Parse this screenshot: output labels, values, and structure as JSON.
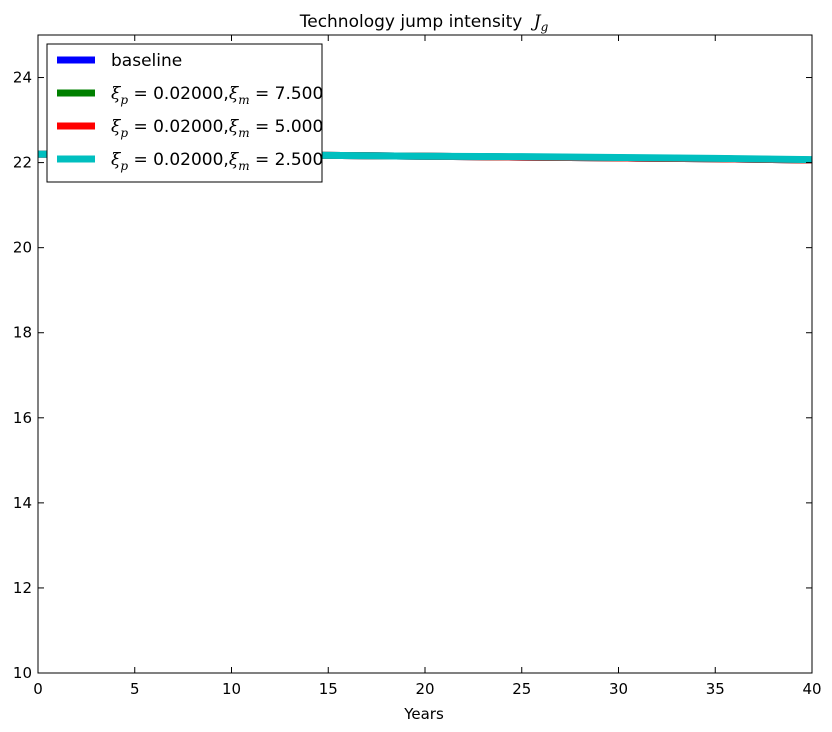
{
  "chart_data": {
    "type": "line",
    "title": "Technology jump intensity",
    "title_math": "J",
    "title_math_sub": "g",
    "xlabel": "Years",
    "ylabel": "",
    "xlim": [
      0,
      40
    ],
    "ylim": [
      10,
      25
    ],
    "xticks": [
      0,
      5,
      10,
      15,
      20,
      25,
      30,
      35,
      40
    ],
    "yticks": [
      10,
      12,
      14,
      16,
      18,
      20,
      22,
      24
    ],
    "grid": false,
    "legend_position": "top-left",
    "series": [
      {
        "name": "baseline",
        "color": "#0000ff",
        "x": [
          0,
          5,
          10,
          15,
          20,
          25,
          30,
          35,
          40
        ],
        "values": [
          22.2,
          22.19,
          22.18,
          22.17,
          22.15,
          22.13,
          22.11,
          22.09,
          22.06
        ]
      },
      {
        "name": "ξp = 0.02000,ξm = 7.500",
        "color": "#008000",
        "x": [
          0,
          5,
          10,
          15,
          20,
          25,
          30,
          35,
          40
        ],
        "values": [
          22.2,
          22.19,
          22.18,
          22.17,
          22.15,
          22.13,
          22.11,
          22.09,
          22.06
        ]
      },
      {
        "name": "ξp = 0.02000,ξm = 5.000",
        "color": "#ff0000",
        "x": [
          0,
          5,
          10,
          15,
          20,
          25,
          30,
          35,
          40
        ],
        "values": [
          22.2,
          22.19,
          22.18,
          22.17,
          22.15,
          22.13,
          22.11,
          22.09,
          22.06
        ]
      },
      {
        "name": "ξp = 0.02000,ξm = 2.500",
        "color": "#00bfbf",
        "x": [
          0,
          5,
          10,
          15,
          20,
          25,
          30,
          35,
          40
        ],
        "values": [
          22.2,
          22.19,
          22.18,
          22.17,
          22.15,
          22.14,
          22.12,
          22.1,
          22.07
        ]
      }
    ]
  },
  "legend": [
    {
      "type": "text",
      "label": "baseline"
    },
    {
      "type": "math",
      "p": "0.02000",
      "m": "7.500"
    },
    {
      "type": "math",
      "p": "0.02000",
      "m": "5.000"
    },
    {
      "type": "math",
      "p": "0.02000",
      "m": "2.500"
    }
  ]
}
